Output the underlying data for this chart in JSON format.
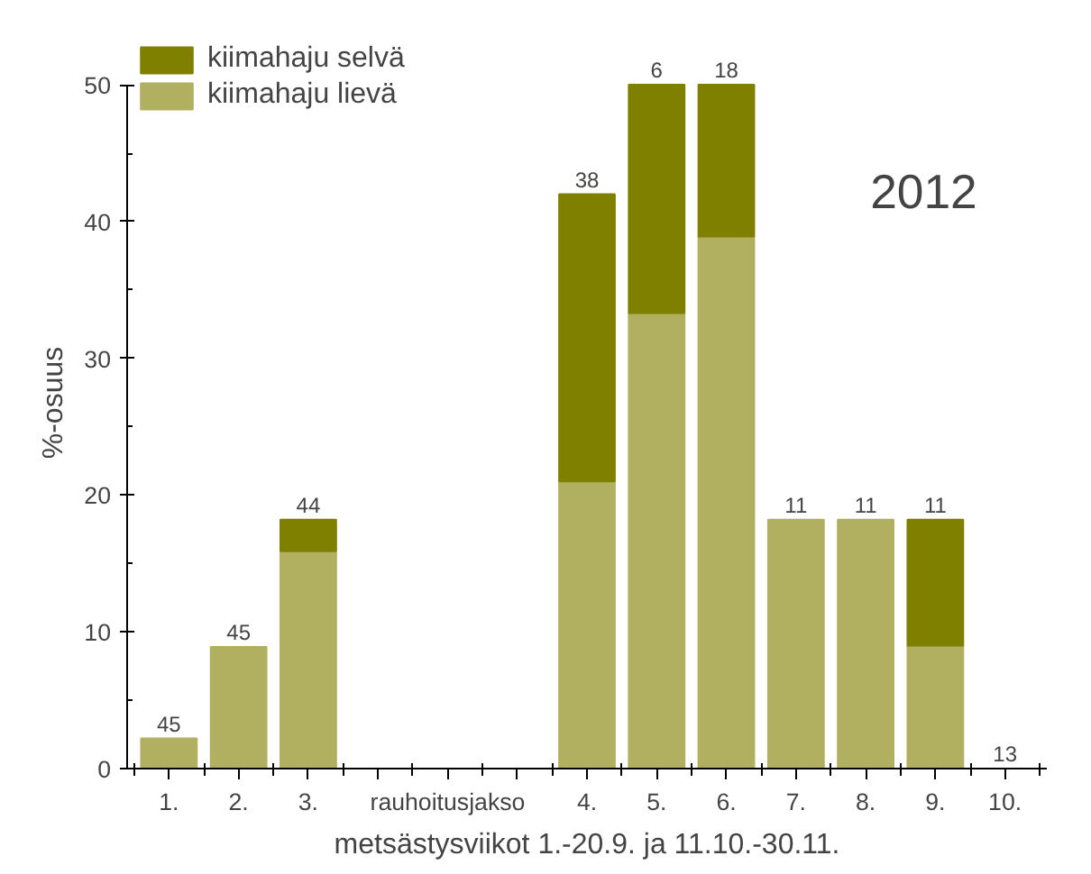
{
  "chart_data": {
    "type": "bar",
    "stacked": true,
    "xlabel": "metsästysviikot 1.-20.9. ja 11.10.-30.11.",
    "ylabel": "%-osuus",
    "categories": [
      "1.",
      "2.",
      "3.",
      null,
      "rauhoitusjakso",
      null,
      "4.",
      "5.",
      "6.",
      "7.",
      "8.",
      "9.",
      "10."
    ],
    "series": [
      {
        "name": "kiimahaju lievä",
        "color": "#b0b060",
        "values": [
          2.2,
          8.9,
          15.9,
          null,
          null,
          null,
          21.0,
          33.3,
          38.9,
          18.2,
          18.2,
          9.0,
          0
        ]
      },
      {
        "name": "kiimahaju selvä",
        "color": "#808000",
        "values": [
          null,
          null,
          2.3,
          null,
          null,
          null,
          21.0,
          16.7,
          11.1,
          null,
          null,
          9.2,
          null
        ]
      }
    ],
    "ylim": [
      0,
      50
    ],
    "yticks": [
      0,
      10,
      20,
      30,
      40,
      50
    ],
    "grid": false,
    "legend": "top left",
    "annotations": [
      "2012",
      {
        "text": "45",
        "x": "1.",
        "y": 2.2
      },
      {
        "text": "45",
        "x": "2.",
        "y": 8.9
      },
      {
        "text": "44",
        "x": "3.",
        "y": 18.2
      },
      {
        "text": "38",
        "x": "4.",
        "y": 42.0
      },
      {
        "text": "6",
        "x": "5.",
        "y": 50
      },
      {
        "text": "18",
        "x": "6.",
        "y": 50
      },
      {
        "text": "11",
        "x": "7.",
        "y": 18.2
      },
      {
        "text": "11",
        "x": "8.",
        "y": 18.2
      },
      {
        "text": "11",
        "x": "9.",
        "y": 18.2
      },
      {
        "text": "13",
        "x": "10.",
        "y": 0
      }
    ]
  }
}
